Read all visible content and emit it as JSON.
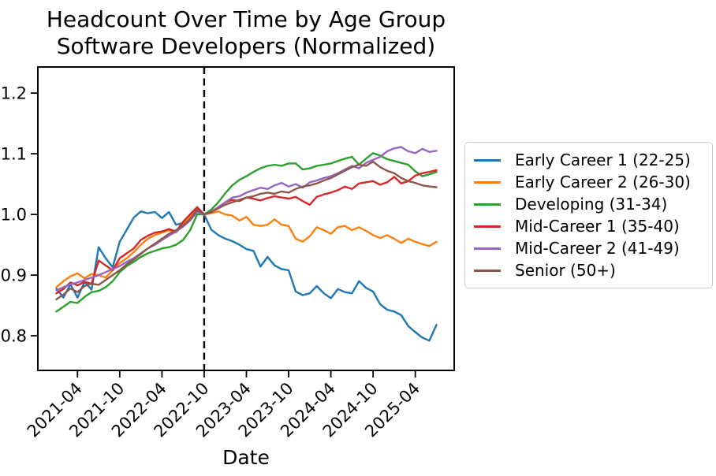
{
  "chart_data": {
    "type": "line",
    "title": "Headcount Over Time by Age Group",
    "subtitle": "Software Developers (Normalized)",
    "xlabel": "Date",
    "ylabel": "",
    "ylim": [
      0.743,
      1.243
    ],
    "yticks": [
      0.8,
      0.9,
      1.0,
      1.1,
      1.2
    ],
    "grid": false,
    "legend_position": "right-outside",
    "vline": {
      "x": "2022-10",
      "style": "dashed",
      "color": "#000000"
    },
    "x": [
      "2021-01",
      "2021-02",
      "2021-03",
      "2021-04",
      "2021-05",
      "2021-06",
      "2021-07",
      "2021-08",
      "2021-09",
      "2021-10",
      "2021-11",
      "2021-12",
      "2022-01",
      "2022-02",
      "2022-03",
      "2022-04",
      "2022-05",
      "2022-06",
      "2022-07",
      "2022-08",
      "2022-09",
      "2022-10",
      "2022-11",
      "2022-12",
      "2023-01",
      "2023-02",
      "2023-03",
      "2023-04",
      "2023-05",
      "2023-06",
      "2023-07",
      "2023-08",
      "2023-09",
      "2023-10",
      "2023-11",
      "2023-12",
      "2024-01",
      "2024-02",
      "2024-03",
      "2024-04",
      "2024-05",
      "2024-06",
      "2024-07",
      "2024-08",
      "2024-09",
      "2024-10",
      "2024-11",
      "2024-12",
      "2025-01",
      "2025-02",
      "2025-03",
      "2025-04",
      "2025-05",
      "2025-06",
      "2025-07"
    ],
    "xtick_labels": [
      "2021-04",
      "2021-10",
      "2022-04",
      "2022-10",
      "2023-04",
      "2023-10",
      "2024-04",
      "2024-10",
      "2025-04"
    ],
    "series": [
      {
        "name": "Early Career 1 (22-25)",
        "color": "#1f77b4",
        "values": [
          0.878,
          0.863,
          0.885,
          0.863,
          0.889,
          0.876,
          0.946,
          0.928,
          0.913,
          0.955,
          0.975,
          0.995,
          1.005,
          1.002,
          1.004,
          0.994,
          1.004,
          0.983,
          0.986,
          1.0,
          1.012,
          1.0,
          0.975,
          0.966,
          0.96,
          0.956,
          0.95,
          0.943,
          0.94,
          0.914,
          0.93,
          0.916,
          0.91,
          0.908,
          0.873,
          0.867,
          0.87,
          0.882,
          0.87,
          0.862,
          0.877,
          0.872,
          0.87,
          0.89,
          0.879,
          0.873,
          0.852,
          0.843,
          0.84,
          0.834,
          0.816,
          0.806,
          0.797,
          0.792,
          0.818
        ]
      },
      {
        "name": "Early Career 2 (26-30)",
        "color": "#ff7f0e",
        "values": [
          0.88,
          0.89,
          0.898,
          0.903,
          0.895,
          0.902,
          0.9,
          0.896,
          0.908,
          0.92,
          0.928,
          0.938,
          0.95,
          0.96,
          0.966,
          0.97,
          0.974,
          0.97,
          0.985,
          0.996,
          1.01,
          1.0,
          1.002,
          1.005,
          1.0,
          0.998,
          0.99,
          0.996,
          0.983,
          0.981,
          0.983,
          0.992,
          0.983,
          0.981,
          0.96,
          0.955,
          0.964,
          0.979,
          0.974,
          0.968,
          0.979,
          0.981,
          0.974,
          0.979,
          0.973,
          0.966,
          0.961,
          0.966,
          0.96,
          0.953,
          0.96,
          0.955,
          0.951,
          0.948,
          0.955
        ]
      },
      {
        "name": "Developing (31-34)",
        "color": "#2ca02c",
        "values": [
          0.84,
          0.848,
          0.856,
          0.854,
          0.864,
          0.872,
          0.874,
          0.88,
          0.89,
          0.905,
          0.915,
          0.922,
          0.93,
          0.936,
          0.94,
          0.944,
          0.946,
          0.95,
          0.958,
          0.974,
          1.0,
          1.0,
          1.008,
          1.02,
          1.035,
          1.048,
          1.057,
          1.063,
          1.07,
          1.076,
          1.08,
          1.082,
          1.08,
          1.084,
          1.084,
          1.074,
          1.076,
          1.08,
          1.082,
          1.084,
          1.088,
          1.092,
          1.095,
          1.082,
          1.092,
          1.101,
          1.097,
          1.091,
          1.088,
          1.085,
          1.082,
          1.071,
          1.063,
          1.066,
          1.07
        ]
      },
      {
        "name": "Mid-Career 1 (35-40)",
        "color": "#d62728",
        "values": [
          0.87,
          0.877,
          0.888,
          0.883,
          0.889,
          0.886,
          0.924,
          0.916,
          0.908,
          0.928,
          0.936,
          0.944,
          0.958,
          0.965,
          0.97,
          0.972,
          0.976,
          0.972,
          0.988,
          1.0,
          1.012,
          1.0,
          1.004,
          1.012,
          1.02,
          1.024,
          1.022,
          1.028,
          1.026,
          1.023,
          1.027,
          1.03,
          1.028,
          1.026,
          1.029,
          1.022,
          1.016,
          1.029,
          1.033,
          1.036,
          1.04,
          1.046,
          1.042,
          1.051,
          1.053,
          1.055,
          1.049,
          1.053,
          1.062,
          1.051,
          1.055,
          1.064,
          1.068,
          1.07,
          1.073
        ]
      },
      {
        "name": "Mid-Career 2 (41-49)",
        "color": "#9467bd",
        "values": [
          0.875,
          0.88,
          0.885,
          0.888,
          0.892,
          0.896,
          0.9,
          0.905,
          0.91,
          0.915,
          0.922,
          0.928,
          0.936,
          0.944,
          0.95,
          0.958,
          0.965,
          0.972,
          0.98,
          0.99,
          1.004,
          1.0,
          1.004,
          1.012,
          1.02,
          1.028,
          1.03,
          1.036,
          1.04,
          1.044,
          1.042,
          1.048,
          1.052,
          1.046,
          1.05,
          1.044,
          1.053,
          1.056,
          1.06,
          1.063,
          1.068,
          1.074,
          1.08,
          1.076,
          1.085,
          1.09,
          1.095,
          1.104,
          1.109,
          1.111,
          1.104,
          1.101,
          1.108,
          1.103,
          1.105
        ]
      },
      {
        "name": "Senior (50+)",
        "color": "#8c564b",
        "values": [
          0.86,
          0.868,
          0.878,
          0.872,
          0.882,
          0.886,
          0.884,
          0.892,
          0.9,
          0.908,
          0.918,
          0.926,
          0.935,
          0.944,
          0.952,
          0.96,
          0.968,
          0.974,
          0.982,
          0.992,
          1.008,
          1.0,
          1.004,
          1.01,
          1.016,
          1.02,
          1.024,
          1.028,
          1.03,
          1.034,
          1.036,
          1.034,
          1.038,
          1.036,
          1.042,
          1.046,
          1.048,
          1.051,
          1.056,
          1.06,
          1.066,
          1.072,
          1.078,
          1.082,
          1.08,
          1.087,
          1.078,
          1.072,
          1.068,
          1.06,
          1.055,
          1.052,
          1.048,
          1.046,
          1.045
        ]
      }
    ]
  }
}
